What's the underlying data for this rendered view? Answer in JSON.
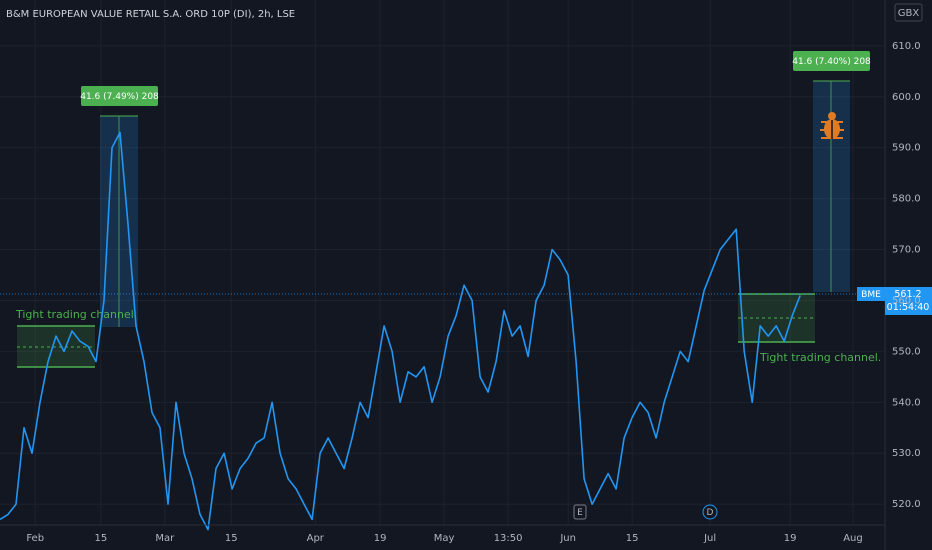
{
  "chart_data": {
    "type": "line",
    "title": "B&M EUROPEAN VALUE RETAIL S.A. ORD 10P (DI), 2h, LSE",
    "currency": "GBX",
    "symbol": "BME",
    "last_price": {
      "value": 561.2,
      "label": "561.2"
    },
    "countdown": "01:54:40",
    "annotations": [
      "Tight trading channel.",
      "Tight trading channel.",
      "41.6 (7.49%) 208",
      "41.6 (7.40%) 208"
    ],
    "events": [
      "E",
      "D"
    ],
    "color": "#2196f3",
    "values": [
      517,
      518,
      520,
      535,
      530,
      540,
      548,
      553,
      550,
      554,
      552,
      551,
      548,
      560,
      590,
      593,
      575,
      555,
      548,
      538,
      535,
      520,
      540,
      530,
      525,
      518,
      515,
      527,
      530,
      523,
      527,
      529,
      532,
      533,
      540,
      530,
      525,
      523,
      520,
      517,
      530,
      533,
      530,
      527,
      533,
      540,
      537,
      546,
      555,
      550,
      540,
      546,
      545,
      547,
      540,
      545,
      553,
      557,
      563,
      560,
      545,
      542,
      548,
      558,
      553,
      555,
      549,
      560,
      563,
      570,
      568,
      565,
      548,
      525,
      520,
      523,
      526,
      523,
      533,
      537,
      540,
      538,
      533,
      540,
      545,
      550,
      548,
      555,
      562,
      566,
      570,
      572,
      574,
      550,
      540,
      555,
      553,
      555,
      552,
      557,
      561
    ],
    "xlim": [
      0,
      110.6
    ],
    "xticks": [
      {
        "value": 4.4,
        "label": "Feb"
      },
      {
        "value": 12.6,
        "label": "15"
      },
      {
        "value": 20.6,
        "label": "Mar"
      },
      {
        "value": 28.9,
        "label": "15"
      },
      {
        "value": 39.4,
        "label": "Apr"
      },
      {
        "value": 47.5,
        "label": "19"
      },
      {
        "value": 55.5,
        "label": "May"
      },
      {
        "value": 63.5,
        "label": "13:50"
      },
      {
        "value": 71,
        "label": "Jun"
      },
      {
        "value": 79,
        "label": "15"
      },
      {
        "value": 88.75,
        "label": "Jul"
      },
      {
        "value": 98.75,
        "label": "19"
      },
      {
        "value": 106.6,
        "label": "Aug"
      }
    ],
    "ylim": [
      511,
      619
    ],
    "yticks": [
      {
        "value": 520,
        "label": "520.0"
      },
      {
        "value": 530,
        "label": "530.0"
      },
      {
        "value": 540,
        "label": "540.0"
      },
      {
        "value": 550,
        "label": "550.0"
      },
      {
        "value": 560,
        "label": "560.0"
      },
      {
        "value": 570,
        "label": "570.0"
      },
      {
        "value": 580,
        "label": "580.0"
      },
      {
        "value": 590,
        "label": "590.0"
      },
      {
        "value": 600,
        "label": "600.0"
      },
      {
        "value": 610,
        "label": "610.0"
      }
    ],
    "grid": true
  }
}
